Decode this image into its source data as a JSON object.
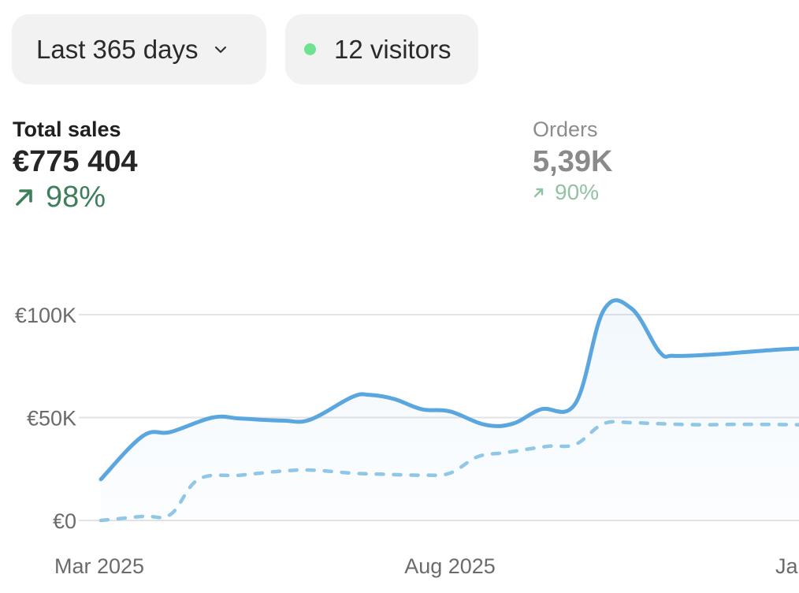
{
  "filters": {
    "range_label": "Last 365 days",
    "visitors_label": "12 visitors",
    "visitors_dot_color": "#6ee38f",
    "range_icon": "chevron-down-icon"
  },
  "metrics": {
    "sales": {
      "label": "Total sales",
      "value": "€775 404",
      "change": "98%",
      "change_icon": "arrow-up-right-icon",
      "color": "#3f7f5b"
    },
    "orders": {
      "label": "Orders",
      "value": "5,39K",
      "change": "90%",
      "change_icon": "arrow-up-right-icon",
      "color": "#93c1a5"
    }
  },
  "chart_data": {
    "type": "line",
    "y_tick_labels": [
      "€0",
      "€50K",
      "€100K"
    ],
    "y_ticks": [
      0,
      50000,
      100000
    ],
    "ylim": [
      0,
      100000
    ],
    "x_tick_labels": [
      "Mar 2025",
      "Aug 2025",
      "Ja"
    ],
    "x_ticks": [
      0,
      5,
      10
    ],
    "xlim": [
      0,
      10
    ],
    "grid": true,
    "series": [
      {
        "style": "solid",
        "color": "#5aa6df",
        "area": true,
        "x": [
          0,
          0.6,
          1.0,
          1.6,
          2.0,
          2.6,
          3.0,
          3.6,
          3.85,
          4.2,
          4.6,
          5.0,
          5.5,
          5.9,
          6.3,
          6.8,
          7.2,
          7.6,
          8.0,
          8.2,
          8.7,
          9.3,
          9.7,
          10.0
        ],
        "values": [
          20000,
          41000,
          43000,
          50000,
          49500,
          48500,
          49000,
          60000,
          61000,
          59000,
          54000,
          53000,
          46500,
          47000,
          54000,
          57000,
          102000,
          103000,
          82000,
          80000,
          80500,
          82000,
          83000,
          83500
        ]
      },
      {
        "style": "dashed",
        "color": "#90c6e6",
        "area": false,
        "x": [
          0,
          0.6,
          1.0,
          1.4,
          2.0,
          2.6,
          3.0,
          3.6,
          4.0,
          4.6,
          5.0,
          5.4,
          5.8,
          6.4,
          6.8,
          7.2,
          7.6,
          8.0,
          8.6,
          9.2,
          10.0
        ],
        "values": [
          0,
          2000,
          3000,
          20000,
          22000,
          24000,
          24500,
          23000,
          22500,
          22000,
          23000,
          31000,
          33000,
          36000,
          37000,
          47000,
          47500,
          47000,
          46500,
          46700,
          46500
        ]
      }
    ]
  }
}
